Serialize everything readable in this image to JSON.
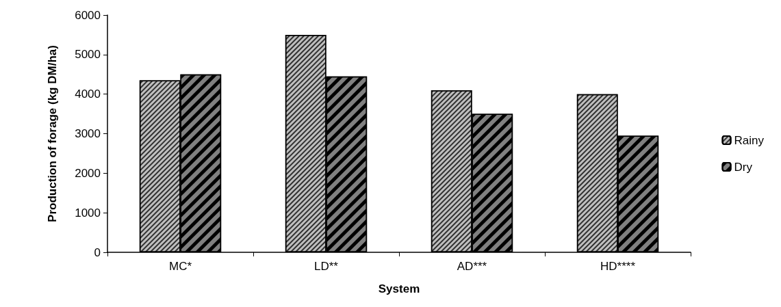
{
  "chart_data": {
    "type": "bar",
    "xlabel": "System",
    "ylabel": "Production of forage (kg DM/ha)",
    "categories": [
      "MC*",
      "LD**",
      "AD***",
      "HD****"
    ],
    "series": [
      {
        "name": "Rainy",
        "color": "#bfbfbf",
        "values": [
          4350,
          5500,
          4100,
          4000
        ]
      },
      {
        "name": "Dry",
        "color": "#808080",
        "values": [
          4500,
          4450,
          3500,
          2950
        ]
      }
    ],
    "ylim": [
      0,
      6000
    ],
    "yticks": [
      0,
      1000,
      2000,
      3000,
      4000,
      5000,
      6000
    ],
    "grid": false,
    "legend": "right"
  }
}
